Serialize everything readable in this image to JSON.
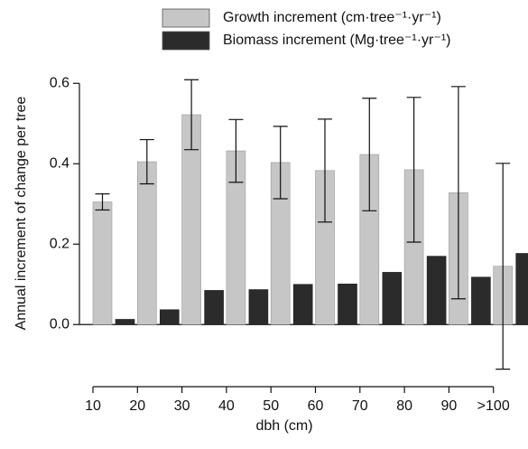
{
  "chart_data": {
    "type": "bar",
    "x_label": "dbh (cm)",
    "y_label": "Annual increment of change per tree",
    "categories": [
      "10",
      "20",
      "30",
      "40",
      "50",
      "60",
      "70",
      "80",
      "90",
      ">100"
    ],
    "series": [
      {
        "name": "Growth increment (cm·tree⁻¹·yr⁻¹)",
        "color": "#c6c6c6",
        "values": [
          0.305,
          0.405,
          0.522,
          0.432,
          0.403,
          0.383,
          0.423,
          0.385,
          0.328,
          0.145
        ],
        "errors": [
          0.02,
          0.055,
          0.087,
          0.078,
          0.09,
          0.128,
          0.14,
          0.18,
          0.264,
          0.256
        ]
      },
      {
        "name": "Biomass increment (Mg·tree⁻¹·yr⁻¹)",
        "color": "#2b2b2b",
        "values": [
          0.013,
          0.037,
          0.085,
          0.087,
          0.1,
          0.101,
          0.13,
          0.17,
          0.118,
          0.177
        ]
      }
    ],
    "ylim": [
      -0.15,
      0.65
    ],
    "yticks": [
      {
        "value": 0,
        "label": "0.0"
      },
      0.2,
      0.4,
      0.6
    ]
  }
}
